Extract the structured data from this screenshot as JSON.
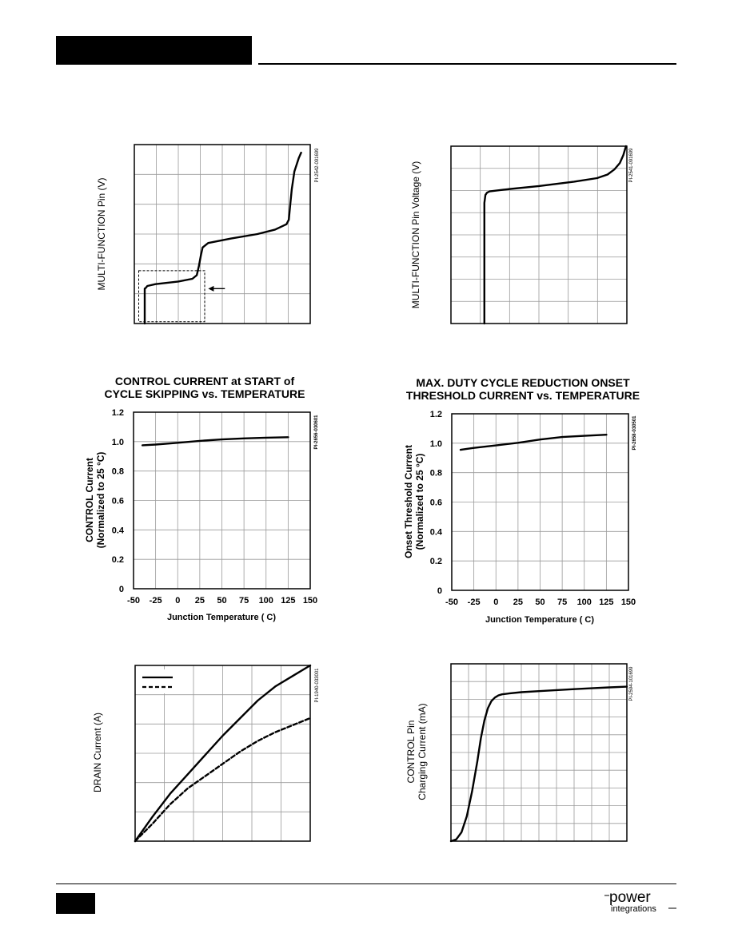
{
  "logo": {
    "word1": "power",
    "word2": "integrations"
  },
  "chart_data": [
    {
      "id": "c1",
      "type": "line",
      "title": [],
      "xlabel": "",
      "ylabel": "MULTI-FUNCTION Pin (V)",
      "code": "PI-2542-091699",
      "x_range": [
        0,
        100
      ],
      "y_range": [
        0,
        100
      ],
      "gridlines_x": 8,
      "gridlines_y": 6,
      "xticks": [],
      "yticks": [],
      "series": [
        {
          "style": "solid",
          "x": [
            5.9,
            5.9,
            6.4,
            7.4,
            12,
            25,
            33,
            35.5,
            36.7,
            37.8,
            38.8,
            42,
            55,
            70,
            80,
            86.5,
            87.8,
            88.6,
            89.5,
            91,
            93.5,
            94.8
          ],
          "y": [
            0,
            19.5,
            19.8,
            21,
            22,
            23.5,
            25,
            27,
            32,
            38,
            42.5,
            45,
            47.5,
            50,
            52.5,
            55.5,
            58,
            66,
            75,
            85,
            92.5,
            95.5
          ]
        }
      ],
      "dashed_box": {
        "x": [
          2.5,
          40
        ],
        "y": [
          1,
          29.5
        ]
      },
      "arrow": {
        "from_x": 51.5,
        "to_x": 42,
        "y": 19.5
      }
    },
    {
      "id": "c2",
      "type": "line",
      "title": [],
      "xlabel": "",
      "ylabel": "MULTI-FUNCTION Pin Voltage (V)",
      "code": "PI-2541-091699",
      "x_range": [
        0,
        100
      ],
      "y_range": [
        0,
        100
      ],
      "gridlines_x": 6,
      "gridlines_y": 8,
      "xticks": [],
      "yticks": [],
      "series": [
        {
          "style": "solid",
          "x": [
            19,
            19,
            19.6,
            20.5,
            22,
            30,
            50,
            70,
            83,
            89,
            93,
            96,
            98,
            99.5
          ],
          "y": [
            0,
            68,
            72.5,
            73.8,
            74.5,
            75.5,
            77.5,
            80,
            82,
            84,
            87,
            90.5,
            95,
            100
          ]
        }
      ]
    },
    {
      "id": "c3",
      "type": "line",
      "title": [
        "CONTROL CURRENT at START of",
        "CYCLE SKIPPING vs. TEMPERATURE"
      ],
      "xlabel": "Junction Temperature (  C)",
      "ylabel": [
        "CONTROL Current",
        "(Normalized to 25 °C)"
      ],
      "code": "PI-2656-030601",
      "x_range": [
        -50,
        150
      ],
      "y_range": [
        0,
        1.2
      ],
      "gridlines_x": 8,
      "gridlines_y": 6,
      "xticks": [
        "-50",
        "-25",
        "0",
        "25",
        "50",
        "75",
        "100",
        "125",
        "150"
      ],
      "yticks": [
        "0",
        "0.2",
        "0.4",
        "0.6",
        "0.8",
        "1.0",
        "1.2"
      ],
      "series": [
        {
          "style": "solid",
          "x": [
            -40,
            -25,
            0,
            25,
            50,
            75,
            100,
            125
          ],
          "y": [
            0.975,
            0.98,
            0.992,
            1.005,
            1.015,
            1.022,
            1.027,
            1.03
          ]
        }
      ]
    },
    {
      "id": "c4",
      "type": "line",
      "title": [
        "MAX. DUTY CYCLE REDUCTION ONSET",
        "THRESHOLD CURRENT vs. TEMPERATURE"
      ],
      "xlabel": "Junction Temperature (  C)",
      "ylabel": [
        "Onset Threshold Current",
        "(Normalized to 25 °C)"
      ],
      "code": "PI-2658-030501",
      "x_range": [
        -50,
        150
      ],
      "y_range": [
        0,
        1.2
      ],
      "gridlines_x": 8,
      "gridlines_y": 6,
      "xticks": [
        "-50",
        "-25",
        "0",
        "25",
        "50",
        "75",
        "100",
        "125",
        "150"
      ],
      "yticks": [
        "0",
        "0.2",
        "0.4",
        "0.6",
        "0.8",
        "1.0",
        "1.2"
      ],
      "series": [
        {
          "style": "solid",
          "x": [
            -40,
            -25,
            0,
            25,
            50,
            75,
            100,
            125
          ],
          "y": [
            0.955,
            0.968,
            0.985,
            1.003,
            1.025,
            1.042,
            1.05,
            1.058
          ]
        }
      ]
    },
    {
      "id": "c5",
      "type": "line",
      "title": [],
      "xlabel": "",
      "ylabel": "DRAIN Current (A)",
      "code": "PI-1940-033001",
      "x_range": [
        0,
        100
      ],
      "y_range": [
        0,
        100
      ],
      "gridlines_x": 6,
      "gridlines_y": 6,
      "xticks": [],
      "yticks": [],
      "legend_placement": "top-left",
      "series": [
        {
          "style": "solid",
          "x": [
            0,
            10,
            20,
            30,
            40,
            50,
            60,
            70,
            80,
            90,
            100
          ],
          "y": [
            0,
            14,
            27,
            38,
            49,
            60,
            70,
            80,
            88,
            94,
            100
          ]
        },
        {
          "style": "dashed",
          "x": [
            0,
            10,
            20,
            30,
            40,
            50,
            60,
            70,
            80,
            90,
            100
          ],
          "y": [
            0,
            10,
            21,
            30,
            37,
            44,
            51,
            57,
            62,
            66,
            70
          ]
        }
      ]
    },
    {
      "id": "c6",
      "type": "line",
      "title": [],
      "xlabel": "",
      "ylabel": [
        "CONTROL Pin",
        "Charging Current (mA)"
      ],
      "code": "PI-2594-101699",
      "x_range": [
        0,
        100
      ],
      "y_range": [
        0,
        100
      ],
      "gridlines_x": 10,
      "gridlines_y": 10,
      "xticks": [],
      "yticks": [],
      "series": [
        {
          "style": "solid",
          "x": [
            0,
            3,
            6,
            9,
            12,
            15,
            17,
            19,
            21,
            23,
            25,
            27,
            29,
            33,
            40,
            50,
            60,
            70,
            80,
            90,
            100
          ],
          "y": [
            0,
            1,
            5,
            14,
            28,
            45,
            58,
            68,
            75,
            79,
            81,
            82.2,
            82.8,
            83.3,
            84,
            84.6,
            85.2,
            85.7,
            86.2,
            86.7,
            87.1
          ]
        }
      ]
    }
  ]
}
